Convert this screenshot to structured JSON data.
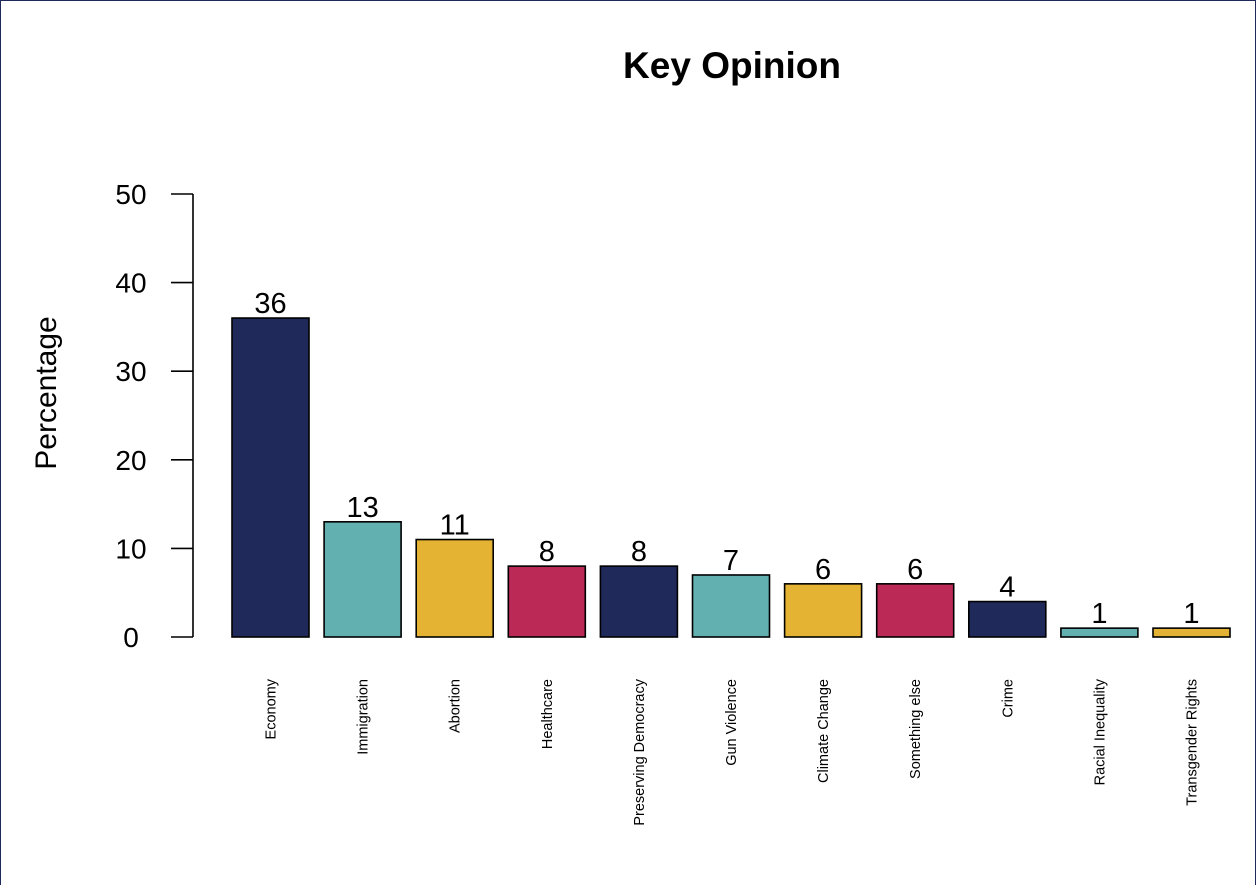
{
  "chart_data": {
    "type": "bar",
    "title": "Key Opinion",
    "xlabel": "",
    "ylabel": "Percentage",
    "ylim": [
      0,
      50
    ],
    "yticks": [
      0,
      10,
      20,
      30,
      40,
      50
    ],
    "grid": false,
    "legend": "none",
    "categories": [
      "Economy",
      "Immigration",
      "Abortion",
      "Healthcare",
      "Preserving Democracy",
      "Gun Violence",
      "Climate Change",
      "Something else",
      "Crime",
      "Racial Inequality",
      "Transgender Rights"
    ],
    "values": [
      36,
      13,
      11,
      8,
      8,
      7,
      6,
      6,
      4,
      1,
      1
    ],
    "value_labels": [
      "36",
      "13",
      "11",
      "8",
      "8",
      "7",
      "6",
      "6",
      "4",
      "1",
      "1"
    ],
    "colors": [
      "#1f2a5a",
      "#63b0b0",
      "#e5b333",
      "#bb2957",
      "#1f2a5a",
      "#63b0b0",
      "#e5b333",
      "#bb2957",
      "#1f2a5a",
      "#63b0b0",
      "#e5b333"
    ],
    "bar_outline_color": "#000000"
  }
}
